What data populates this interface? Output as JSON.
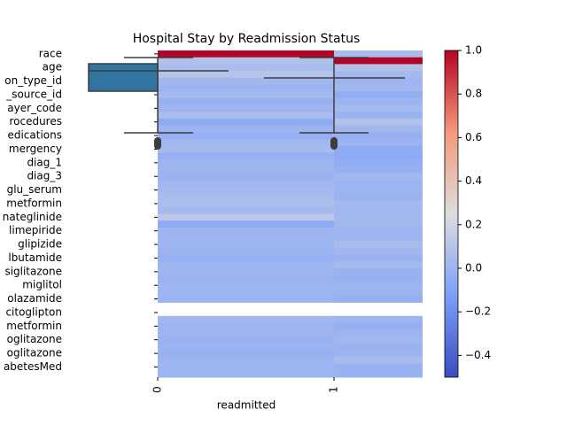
{
  "chart_data": {
    "type": "heatmap",
    "title": "Hospital Stay by Readmission Status",
    "xlabel": "readmitted",
    "columns": [
      "0",
      "1"
    ],
    "rows": [
      "race",
      null,
      "age",
      null,
      "on_type_id",
      null,
      "_source_id",
      null,
      "ayer_code",
      null,
      "rocedures",
      null,
      "edications",
      null,
      "mergency",
      null,
      "diag_1",
      null,
      "diag_3",
      null,
      "glu_serum",
      null,
      "metformin",
      null,
      "nateglinide",
      null,
      "limepiride",
      null,
      "glipizide",
      null,
      "lbutamide",
      null,
      "siglitazone",
      null,
      "miglitol",
      null,
      "olazamide",
      null,
      "citoglipton",
      null,
      "metformin",
      null,
      "oglitazone",
      null,
      "oglitazone",
      null,
      "abetesMed",
      null
    ],
    "values": [
      [
        1.0,
        0.08,
        0.05,
        0.1,
        0.02,
        0.0,
        0.03,
        -0.02,
        0.01,
        0.05,
        -0.05,
        0.0,
        -0.03,
        0.02,
        0.04,
        -0.02,
        0.0,
        0.01,
        -0.01,
        0.02,
        0.03,
        0.05,
        0.06,
        0.04,
        0.12,
        -0.06,
        0.0,
        0.01,
        0.0,
        -0.01,
        -0.02,
        0.0,
        0.01,
        -0.01,
        0.0,
        0.0,
        0.0,
        null,
        null,
        0.02,
        0.0,
        0.01,
        -0.01,
        0.0,
        -0.02,
        0.0,
        0.0,
        0.0
      ],
      [
        0.05,
        1.0,
        0.08,
        0.03,
        0.01,
        0.02,
        -0.04,
        0.0,
        0.03,
        -0.01,
        0.08,
        0.02,
        -0.02,
        0.0,
        -0.05,
        -0.06,
        -0.04,
        -0.03,
        0.02,
        0.0,
        0.0,
        -0.01,
        0.03,
        0.02,
        0.03,
        0.02,
        0.0,
        0.01,
        0.05,
        0.02,
        -0.01,
        0.03,
        -0.01,
        -0.02,
        0.0,
        0.0,
        -0.02,
        null,
        null,
        0.0,
        -0.03,
        0.0,
        0.02,
        -0.01,
        0.0,
        0.05,
        -0.02,
        -0.01
      ]
    ],
    "colormap": "coolwarm",
    "clim": [
      -0.5,
      1.0
    ],
    "cticks": [
      {
        "value": -0.4,
        "label": "−0.4"
      },
      {
        "value": -0.2,
        "label": "−0.2"
      },
      {
        "value": 0,
        "label": "0.0"
      },
      0.2,
      0.4,
      0.6,
      0.8,
      {
        "value": 1,
        "label": "1.0"
      }
    ]
  }
}
